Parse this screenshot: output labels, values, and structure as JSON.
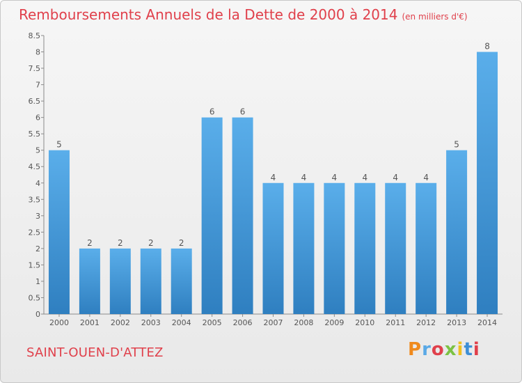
{
  "title": "Remboursements Annuels de la Dette de 2000 à 2014",
  "title_unit": "(en milliers d'€)",
  "commune": "SAINT-OUEN-D'ATTEZ",
  "logo": {
    "letters": [
      "P",
      "r",
      "o",
      "x",
      "i",
      "t",
      "i"
    ]
  },
  "colors": {
    "bar_top": "#5aaeea",
    "bar_bottom": "#2f7fc0",
    "accent": "#e0404b"
  },
  "chart_data": {
    "type": "bar",
    "categories": [
      "2000",
      "2001",
      "2002",
      "2003",
      "2004",
      "2005",
      "2006",
      "2007",
      "2008",
      "2009",
      "2010",
      "2011",
      "2012",
      "2013",
      "2014"
    ],
    "values": [
      5,
      2,
      2,
      2,
      2,
      6,
      6,
      4,
      4,
      4,
      4,
      4,
      4,
      5,
      8
    ],
    "data_labels": [
      "5",
      "2",
      "2",
      "2",
      "2",
      "6",
      "6",
      "4",
      "4",
      "4",
      "4",
      "4",
      "4",
      "5",
      "8"
    ],
    "yticks": [
      "0",
      "0.5",
      "1",
      "1.5",
      "2",
      "2.5",
      "3",
      "3.5",
      "4",
      "4.5",
      "5",
      "5.5",
      "6",
      "6.5",
      "7",
      "7.5",
      "8",
      "8.5"
    ],
    "ylim": [
      0,
      8.5
    ],
    "grid": false,
    "xlabel": "",
    "ylabel": ""
  }
}
